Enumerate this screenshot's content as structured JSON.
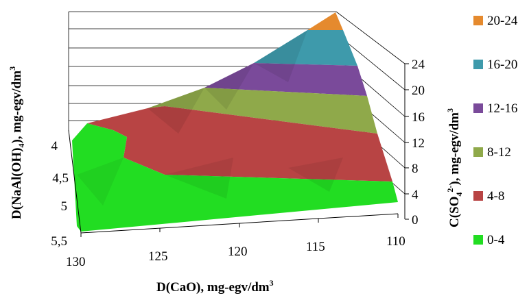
{
  "chart_data": {
    "type": "surface",
    "title": "",
    "x_axis": {
      "label": "D(CaO), mg-egv/dm",
      "label_sup": "3",
      "ticks": [
        "130",
        "125",
        "120",
        "115",
        "110"
      ]
    },
    "depth_axis": {
      "label": "D(NaAl(OH)",
      "label_sub": "4",
      "label_tail": "), mg-egv/dm",
      "label_sup": "3",
      "ticks": [
        "4",
        "4,5",
        "5",
        "5,5"
      ]
    },
    "z_axis": {
      "label": "C(SO",
      "label_sub": "4",
      "label_sup": "2-",
      "label_tail": "), mg-egv/dm",
      "label_sup2": "3",
      "ticks": [
        "0",
        "4",
        "8",
        "12",
        "16",
        "20",
        "24"
      ],
      "range": [
        0,
        24
      ]
    },
    "legend": [
      {
        "label": "20-24",
        "color": "#e58a2e"
      },
      {
        "label": "16-20",
        "color": "#3e9aab"
      },
      {
        "label": "12-16",
        "color": "#7a4a9a"
      },
      {
        "label": "8-12",
        "color": "#8fa94a"
      },
      {
        "label": "4-8",
        "color": "#b84444"
      },
      {
        "label": "0-4",
        "color": "#22dd22"
      }
    ],
    "legend_position": "right",
    "grid": true
  }
}
